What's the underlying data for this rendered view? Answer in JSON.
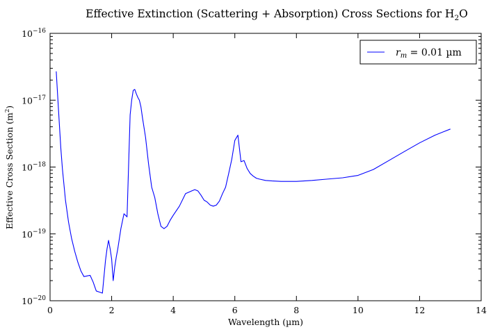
{
  "chart_data": {
    "type": "line",
    "title": "Effective Extinction (Scattering + Absorption) Cross Sections for H",
    "title_sub": "2",
    "title_suffix": "O",
    "xlabel": "Wavelength (µm)",
    "ylabel": "Effective Cross Section (m",
    "ylabel_sup": "2",
    "ylabel_suffix": ")",
    "xlim": [
      0,
      14
    ],
    "ylim": [
      1e-20,
      1e-16
    ],
    "yscale": "log",
    "grid": false,
    "legend_position": "top-right",
    "x_ticks": [
      0,
      2,
      4,
      6,
      8,
      10,
      12,
      14
    ],
    "x_tick_labels": [
      "0",
      "2",
      "4",
      "6",
      "8",
      "10",
      "12",
      "14"
    ],
    "y_ticks": [
      1e-20,
      1e-19,
      1e-18,
      1e-17,
      1e-16
    ],
    "y_tick_base": "10",
    "y_tick_exponents": [
      "−20",
      "−19",
      "−18",
      "−17",
      "−16"
    ],
    "colors": {
      "series": "#0000ff",
      "axes": "#000000",
      "background": "#ffffff"
    },
    "series": [
      {
        "name_var": "r",
        "name_sub": "m",
        "name_rest": " = 0.01 µm",
        "color": "#0000ff",
        "x": [
          0.2,
          0.25,
          0.3,
          0.35,
          0.4,
          0.5,
          0.6,
          0.7,
          0.8,
          0.9,
          1.0,
          1.1,
          1.2,
          1.3,
          1.4,
          1.5,
          1.6,
          1.7,
          1.8,
          1.85,
          1.9,
          1.95,
          2.0,
          2.05,
          2.1,
          2.15,
          2.2,
          2.3,
          2.4,
          2.5,
          2.6,
          2.65,
          2.7,
          2.75,
          2.8,
          2.85,
          2.9,
          2.95,
          3.0,
          3.1,
          3.2,
          3.3,
          3.4,
          3.5,
          3.6,
          3.7,
          3.8,
          3.9,
          4.0,
          4.2,
          4.4,
          4.6,
          4.7,
          4.8,
          4.9,
          5.0,
          5.1,
          5.2,
          5.3,
          5.4,
          5.5,
          5.6,
          5.7,
          5.8,
          5.9,
          6.0,
          6.1,
          6.2,
          6.3,
          6.4,
          6.5,
          6.6,
          6.7,
          6.8,
          7.0,
          7.2,
          7.5,
          8.0,
          8.5,
          9.0,
          9.5,
          10.0,
          10.5,
          11.0,
          11.5,
          12.0,
          12.5,
          13.0
        ],
        "y": [
          2.7e-17,
          1.1e-17,
          4.5e-18,
          1.9e-18,
          9.5e-19,
          3.2e-19,
          1.5e-19,
          8.5e-20,
          5.5e-20,
          3.8e-20,
          2.8e-20,
          2.3e-20,
          2.35e-20,
          2.4e-20,
          1.9e-20,
          1.4e-20,
          1.35e-20,
          1.3e-20,
          4e-20,
          6e-20,
          8e-20,
          6e-20,
          4.2e-20,
          2e-20,
          3.2e-20,
          4.5e-20,
          6e-20,
          1.2e-19,
          2e-19,
          1.8e-19,
          6e-18,
          1e-17,
          1.4e-17,
          1.45e-17,
          1.25e-17,
          1.1e-17,
          1e-17,
          8e-18,
          5.5e-18,
          2.8e-18,
          1.1e-18,
          5e-19,
          3.5e-19,
          2e-19,
          1.3e-19,
          1.2e-19,
          1.3e-19,
          1.6e-19,
          1.9e-19,
          2.6e-19,
          4e-19,
          4.4e-19,
          4.6e-19,
          4.4e-19,
          3.8e-19,
          3.2e-19,
          3e-19,
          2.7e-19,
          2.6e-19,
          2.7e-19,
          3.1e-19,
          4e-19,
          5e-19,
          8e-19,
          1.3e-18,
          2.5e-18,
          3e-18,
          1.2e-18,
          1.25e-18,
          9.5e-19,
          8e-19,
          7.3e-19,
          6.8e-19,
          6.6e-19,
          6.3e-19,
          6.2e-19,
          6.1e-19,
          6.1e-19,
          6.3e-19,
          6.6e-19,
          6.9e-19,
          7.5e-19,
          9.2e-19,
          1.25e-18,
          1.7e-18,
          2.3e-18,
          3e-18,
          3.7e-18
        ]
      }
    ]
  }
}
